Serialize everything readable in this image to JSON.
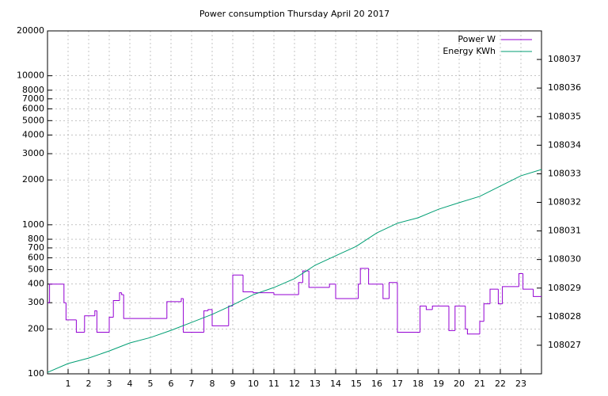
{
  "chart_data": {
    "type": "line",
    "title": "Power consumption Thursday April 20 2017",
    "xlim": [
      0,
      24
    ],
    "xticks": [
      1,
      2,
      3,
      4,
      5,
      6,
      7,
      8,
      9,
      10,
      11,
      12,
      13,
      14,
      15,
      16,
      17,
      18,
      19,
      20,
      21,
      22,
      23
    ],
    "ylim": [
      100,
      20000
    ],
    "log_y": true,
    "yticks": [
      100,
      200,
      300,
      400,
      500,
      600,
      700,
      800,
      1000,
      2000,
      3000,
      4000,
      5000,
      6000,
      7000,
      8000,
      10000,
      20000
    ],
    "y2lim": [
      108026,
      108038
    ],
    "y2ticks": [
      108027,
      108028,
      108029,
      108030,
      108031,
      108032,
      108033,
      108034,
      108035,
      108036,
      108037
    ],
    "grid": true,
    "legend": "top-right",
    "series": [
      {
        "name": "Power W",
        "color": "#9400d3",
        "step": true,
        "x": [
          0,
          0.1,
          0.8,
          0.9,
          1.4,
          1.8,
          2.3,
          2.4,
          3.0,
          3.2,
          3.5,
          3.6,
          3.7,
          5.8,
          6.5,
          6.6,
          7.6,
          7.8,
          8.0,
          8.8,
          9.0,
          9.5,
          10,
          11,
          12.2,
          12.4,
          12.7,
          13.7,
          14.0,
          15.1,
          15.2,
          15.6,
          16.3,
          16.6,
          17.0,
          18.1,
          18.4,
          18.7,
          19.5,
          19.8,
          20.3,
          20.4,
          21.0,
          21.2,
          21.5,
          21.9,
          22.1,
          22.9,
          23.1,
          23.6
        ],
        "values": [
          300,
          400,
          300,
          230,
          190,
          245,
          265,
          190,
          240,
          310,
          350,
          340,
          235,
          305,
          320,
          190,
          265,
          270,
          210,
          285,
          460,
          355,
          350,
          340,
          410,
          490,
          380,
          400,
          320,
          400,
          510,
          400,
          320,
          410,
          190,
          285,
          270,
          285,
          195,
          285,
          200,
          185,
          225,
          295,
          370,
          295,
          385,
          470,
          370,
          330
        ]
      },
      {
        "name": "Energy KWh",
        "color": "#009e73",
        "axis": "y2",
        "x": [
          0,
          1,
          2,
          3,
          4,
          5,
          6,
          7,
          8,
          9,
          10,
          11,
          12,
          13,
          14,
          15,
          16,
          17,
          18,
          19,
          20,
          21,
          22,
          23,
          24
        ],
        "values": [
          108026.05,
          108026.36,
          108026.55,
          108026.8,
          108027.08,
          108027.27,
          108027.52,
          108027.8,
          108028.08,
          108028.41,
          108028.77,
          108029.02,
          108029.33,
          108029.8,
          108030.13,
          108030.46,
          108030.93,
          108031.27,
          108031.46,
          108031.76,
          108031.99,
          108032.21,
          108032.57,
          108032.93,
          108033.15
        ]
      }
    ]
  }
}
